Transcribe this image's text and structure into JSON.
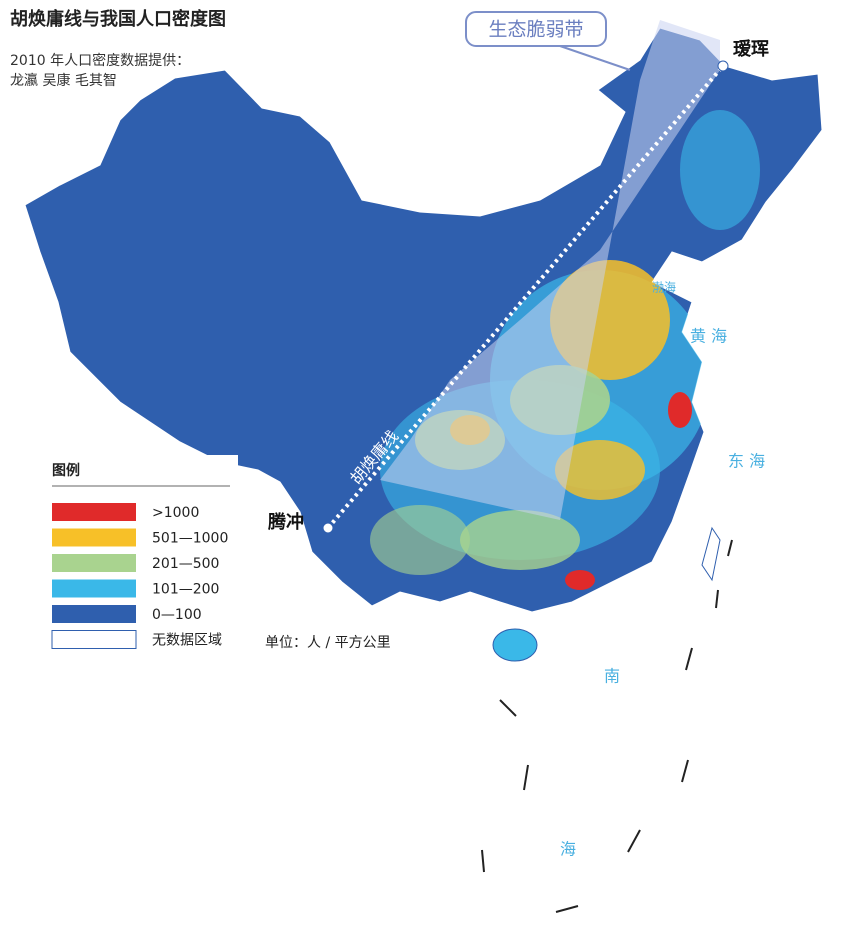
{
  "title": "胡焕庸线与我国人口密度图",
  "source_line": "2010 年人口密度数据提供：",
  "authors": "龙瀛  吴康  毛其智",
  "map_labels": {
    "eco_zone": "生态脆弱带",
    "aihui": "瑷珲",
    "tengchong": "腾冲",
    "hu_line": "胡焕庸线",
    "bohai": "渤海",
    "huanghai": "黄 海",
    "donghai": "东 海",
    "nan": "南",
    "hai": "海"
  },
  "legend": {
    "title": "图例",
    "items": [
      {
        "label": ">1000",
        "color": "#e02a2a"
      },
      {
        "label": "501—1000",
        "color": "#f7c028"
      },
      {
        "label": "201—500",
        "color": "#a9d38f"
      },
      {
        "label": "101—200",
        "color": "#3ab8e8"
      },
      {
        "label": "0—100",
        "color": "#2f5fae"
      },
      {
        "label": "无数据区域",
        "color": "#ffffff"
      }
    ],
    "unit": "单位：人 / 平方公里"
  }
}
